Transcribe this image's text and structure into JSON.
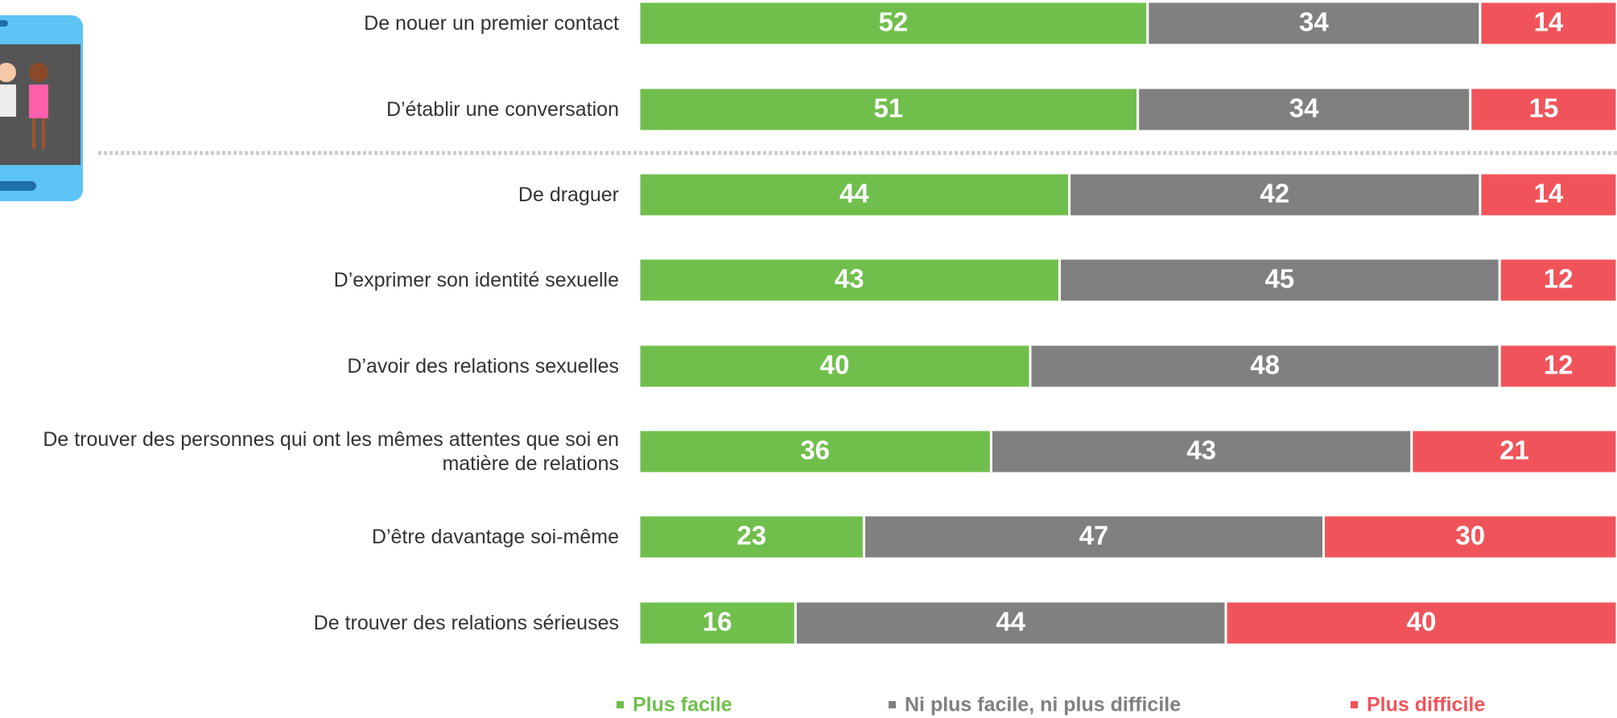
{
  "chart_data": {
    "type": "stacked-barh",
    "categories": [
      "De nouer un premier contact",
      "D’établir une conversation",
      "De draguer",
      "D’exprimer son identité sexuelle",
      "D’avoir des relations sexuelles",
      "De trouver des personnes qui ont les mêmes attentes que soi en matière de relations",
      "D’être davantage soi-même",
      "De trouver des relations sérieuses"
    ],
    "series": [
      {
        "name": "Plus facile",
        "color": "#70bf4c",
        "values": [
          52,
          51,
          44,
          43,
          40,
          36,
          23,
          16
        ]
      },
      {
        "name": "Ni plus facile, ni plus difficile",
        "color": "#808080",
        "values": [
          34,
          34,
          42,
          45,
          48,
          43,
          47,
          44
        ]
      },
      {
        "name": "Plus difficile",
        "color": "#f0545a",
        "values": [
          14,
          15,
          14,
          12,
          12,
          21,
          30,
          40
        ]
      }
    ],
    "xlim": [
      0,
      100
    ]
  }
}
